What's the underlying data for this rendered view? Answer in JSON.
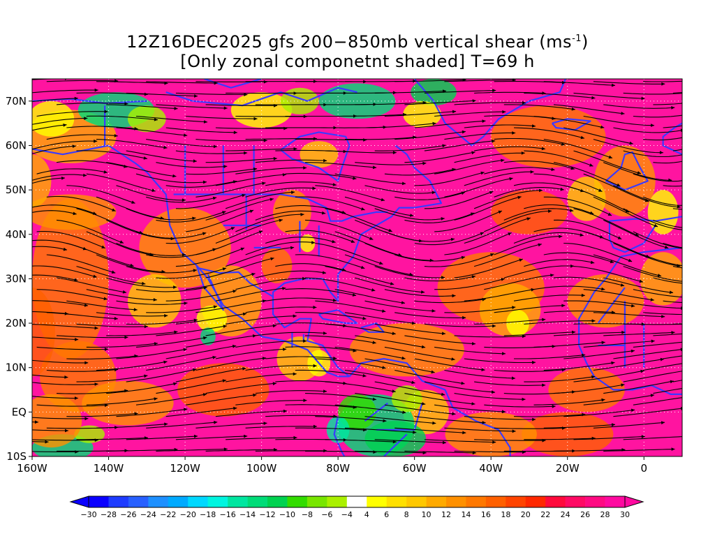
{
  "title": {
    "line1_main": "12Z16DEC2025 gfs 200−850mb vertical shear (ms",
    "line1_sup": "-1",
    "line1_end": ")",
    "line2": "[Only zonal componetnt shaded] T=69 h"
  },
  "axes": {
    "lat_labels": [
      "70N",
      "60N",
      "50N",
      "40N",
      "30N",
      "20N",
      "10N",
      "EQ",
      "10S"
    ],
    "lat_values": [
      70,
      60,
      50,
      40,
      30,
      20,
      10,
      0,
      -10
    ],
    "lon_labels": [
      "160W",
      "140W",
      "120W",
      "100W",
      "80W",
      "60W",
      "40W",
      "20W",
      "0"
    ],
    "lon_values": [
      -160,
      -140,
      -120,
      -100,
      -80,
      -60,
      -40,
      -20,
      0
    ],
    "lon_range": [
      -160,
      10
    ],
    "lat_range": [
      -10,
      75
    ],
    "grid": "dotted white",
    "streamlines": "black with arrowheads",
    "coastlines_color": "#3a3aff",
    "contours_color": "#8a2be2"
  },
  "colorbar": {
    "labels": [
      "−30",
      "−28",
      "−26",
      "−24",
      "−22",
      "−20",
      "−18",
      "−16",
      "−14",
      "−12",
      "−10",
      "−8",
      "−6",
      "−4",
      "4",
      "6",
      "8",
      "10",
      "12",
      "14",
      "16",
      "18",
      "20",
      "22",
      "24",
      "26",
      "28",
      "30"
    ],
    "colors": [
      "#0a00ff",
      "#1e3cff",
      "#2860ff",
      "#1e90ff",
      "#00aaff",
      "#00d8ff",
      "#00f5e0",
      "#00e6a0",
      "#00dc78",
      "#00d250",
      "#32dc00",
      "#78e600",
      "#aaf000",
      "#ffffff",
      "#ffff00",
      "#ffe000",
      "#ffc800",
      "#ffaa00",
      "#ff9000",
      "#ff7800",
      "#ff6000",
      "#ff4400",
      "#ff2800",
      "#ff0a3c",
      "#ff0a64",
      "#ff0a82",
      "#ff0aa0"
    ],
    "under_color": "#0a00ff",
    "over_color": "#ff0aa0"
  }
}
